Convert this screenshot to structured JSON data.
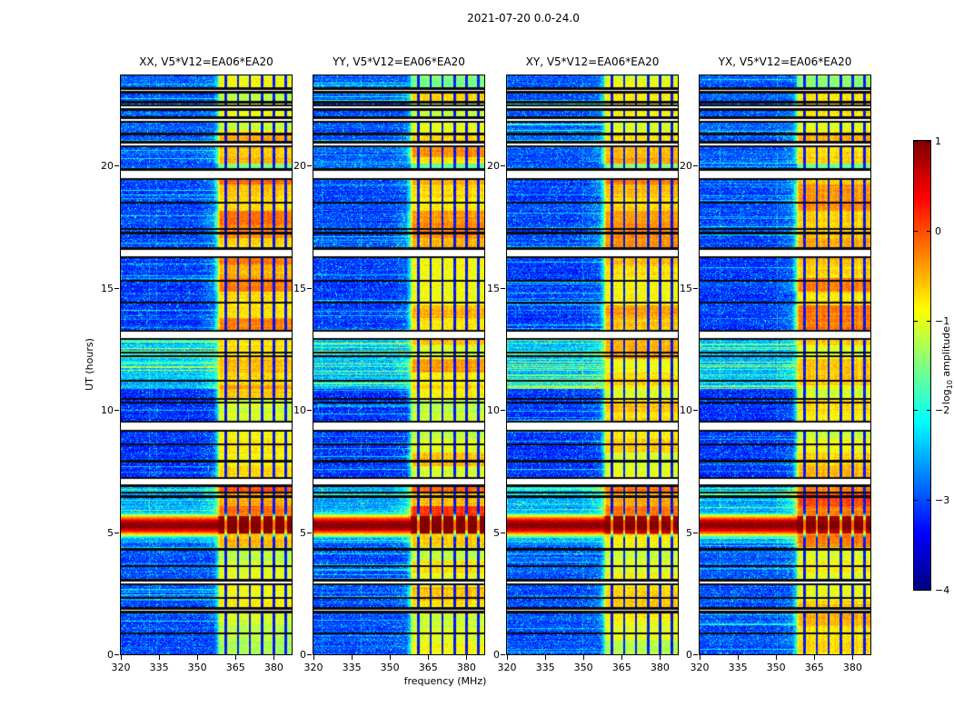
{
  "chart_data": {
    "type": "heatmap",
    "title": "2021-07-20 0.0-24.0",
    "xlabel": "frequency (MHz)",
    "ylabel": "UT (hours)",
    "panels": [
      {
        "pol": "XX",
        "title": "XX, V5*V12=EA06*EA20"
      },
      {
        "pol": "YY",
        "title": "YY, V5*V12=EA06*EA20"
      },
      {
        "pol": "XY",
        "title": "XY, V5*V12=EA06*EA20"
      },
      {
        "pol": "YX",
        "title": "YX, V5*V12=EA06*EA20"
      }
    ],
    "x_range": [
      320,
      387
    ],
    "y_range": [
      0,
      23.7
    ],
    "x_ticks": [
      320,
      335,
      350,
      365,
      380
    ],
    "y_ticks": [
      0,
      5,
      10,
      15,
      20
    ],
    "colorbar": {
      "label": "log10 amplitude",
      "label_parts": {
        "pre": "log",
        "sub": "10",
        "post": " amplitude"
      },
      "colormap": "jet",
      "range": [
        -4,
        1
      ],
      "ticks": [
        {
          "label": "1",
          "value": 1
        },
        {
          "label": "0",
          "value": 0
        },
        {
          "label": "−1",
          "value": -1
        },
        {
          "label": "−2",
          "value": -2
        },
        {
          "label": "−3",
          "value": -3
        },
        {
          "label": "−4",
          "value": -4
        }
      ]
    },
    "features": {
      "background_level": -3.2,
      "bg_bands": [
        {
          "range": [
            0,
            4.55
          ],
          "level": -3.0,
          "streak": 0.1,
          "streak_amp": 0.6
        },
        {
          "range": [
            4.55,
            6.9
          ],
          "level": -2.55,
          "streak": 0.22,
          "streak_amp": 0.6
        },
        {
          "range": [
            6.9,
            10.85
          ],
          "level": -3.15,
          "streak": 0.06,
          "streak_amp": 0.6
        },
        {
          "range": [
            10.85,
            13.0
          ],
          "level": -2.45,
          "streak": 0.38,
          "streak_amp": 0.85
        },
        {
          "range": [
            13.0,
            16.3
          ],
          "level": -3.1,
          "streak": 0.07,
          "streak_amp": 0.6
        },
        {
          "range": [
            16.3,
            19.5
          ],
          "level": -3.05,
          "streak": 0.08,
          "streak_amp": 0.6
        },
        {
          "range": [
            19.5,
            23.7
          ],
          "level": -2.95,
          "streak": 0.12,
          "streak_amp": 0.65
        }
      ],
      "rfi_band": {
        "f_start": 358,
        "f_end": 387,
        "channel_period": 4.7,
        "dark_line_start": 360.8,
        "dark_line_width": 0.9,
        "bleed_f_start": 350
      },
      "band_segments": [
        {
          "range": [
            0,
            1.2
          ],
          "level": -1.05
        },
        {
          "range": [
            1.2,
            4.4
          ],
          "level": -0.9
        },
        {
          "range": [
            4.4,
            4.95
          ],
          "level": -0.55
        },
        {
          "range": [
            4.95,
            5.65
          ],
          "level": 0.9
        },
        {
          "range": [
            5.65,
            6.9
          ],
          "level": -0.25
        },
        {
          "range": [
            6.9,
            9.2
          ],
          "level": -0.85
        },
        {
          "range": [
            9.2,
            10.85
          ],
          "level": -0.95
        },
        {
          "range": [
            10.85,
            13.0
          ],
          "level": -0.75
        },
        {
          "range": [
            13.0,
            16.3
          ],
          "level": -0.6
        },
        {
          "range": [
            16.3,
            19.5
          ],
          "level": -0.5
        },
        {
          "range": [
            19.5,
            20.1
          ],
          "level": -1.5
        },
        {
          "range": [
            20.1,
            21.3
          ],
          "level": -0.55
        },
        {
          "range": [
            21.3,
            23.0
          ],
          "level": -0.85
        },
        {
          "range": [
            23.0,
            23.7
          ],
          "level": -1.3
        }
      ],
      "burst": {
        "ut_center": 5.28,
        "sigma": 0.28,
        "peak_level": 0.95
      },
      "white_gaps": [
        [
          6.95,
          7.18
        ],
        [
          9.2,
          9.47
        ],
        [
          12.95,
          13.2
        ],
        [
          16.3,
          16.57
        ],
        [
          19.5,
          19.78
        ],
        [
          20.85,
          20.92
        ],
        [
          21.85,
          21.92
        ],
        [
          22.35,
          22.42
        ],
        [
          23.05,
          23.12
        ],
        [
          2.92,
          2.98
        ],
        [
          1.78,
          1.84
        ]
      ],
      "black_lines": [
        0.85,
        2.3,
        3.6,
        4.3,
        6.45,
        6.62,
        7.9,
        8.6,
        10.3,
        10.45,
        11.2,
        12.2,
        12.35,
        14.4,
        15.3,
        17.25,
        17.42,
        18.5,
        19.87,
        21.3,
        22.6
      ]
    }
  }
}
